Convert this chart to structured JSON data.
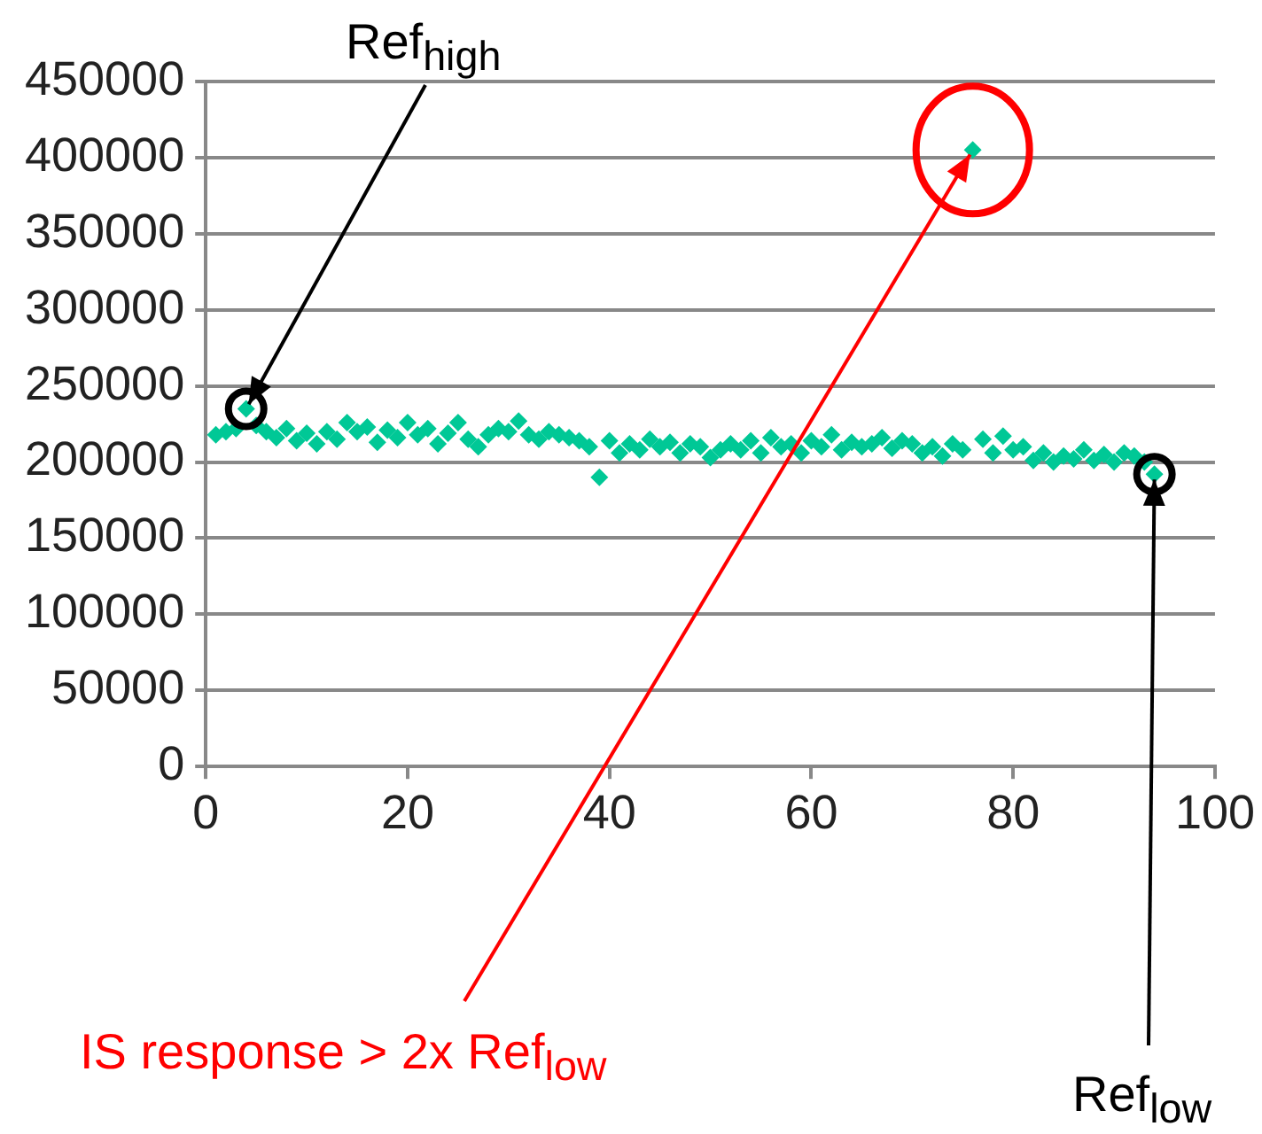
{
  "chart_data": {
    "type": "scatter",
    "series": [
      {
        "color": "#00c896",
        "x": [
          1,
          2,
          3,
          4,
          5,
          6,
          7,
          8,
          9,
          10,
          11,
          12,
          13,
          14,
          15,
          16,
          17,
          18,
          19,
          20,
          21,
          22,
          23,
          24,
          25,
          26,
          27,
          28,
          29,
          30,
          31,
          32,
          33,
          34,
          35,
          36,
          37,
          38,
          39,
          40,
          41,
          42,
          43,
          44,
          45,
          46,
          47,
          48,
          49,
          50,
          51,
          52,
          53,
          54,
          55,
          56,
          57,
          58,
          59,
          60,
          61,
          62,
          63,
          64,
          65,
          66,
          67,
          68,
          69,
          70,
          71,
          72,
          73,
          74,
          75,
          76,
          77,
          78,
          79,
          80,
          81,
          82,
          83,
          84,
          85,
          86,
          87,
          88,
          89,
          90,
          91,
          92,
          93,
          94
        ],
        "values": [
          218000,
          220000,
          222000,
          235000,
          224000,
          220000,
          216000,
          222000,
          214000,
          219000,
          212000,
          220000,
          215000,
          226000,
          220000,
          223000,
          213000,
          221000,
          216000,
          226000,
          218000,
          222000,
          212000,
          219000,
          226000,
          215000,
          210000,
          218000,
          222000,
          220000,
          227000,
          218000,
          215000,
          220000,
          218000,
          216000,
          214000,
          210000,
          190000,
          214000,
          206000,
          212000,
          208000,
          215000,
          210000,
          213000,
          206000,
          212000,
          210000,
          203000,
          208000,
          212000,
          208000,
          214000,
          206000,
          216000,
          210000,
          212000,
          206000,
          214000,
          210000,
          218000,
          208000,
          213000,
          210000,
          212000,
          216000,
          209000,
          214000,
          212000,
          206000,
          210000,
          204000,
          212000,
          208000,
          405000,
          215000,
          206000,
          217000,
          208000,
          210000,
          201000,
          206000,
          200000,
          204000,
          202000,
          208000,
          201000,
          205000,
          200000,
          206000,
          204000,
          200000,
          192000
        ]
      }
    ],
    "xlim": [
      0,
      100
    ],
    "xticks": [
      0,
      20,
      40,
      60,
      80,
      100
    ],
    "ylim": [
      0,
      450000
    ],
    "yticks": [
      0,
      50000,
      100000,
      150000,
      200000,
      250000,
      300000,
      350000,
      400000,
      450000
    ],
    "grid": "y",
    "legend": false,
    "marker": "diamond",
    "annotations": [
      {
        "text": "Ref$_{high}$",
        "x": 4,
        "y": 235000
      },
      {
        "text": "IS response > 2x Ref$_{low}$",
        "x": 76,
        "y": 405000
      },
      {
        "text": "Ref$_{low}$",
        "x": 94,
        "y": 192000
      }
    ]
  }
}
